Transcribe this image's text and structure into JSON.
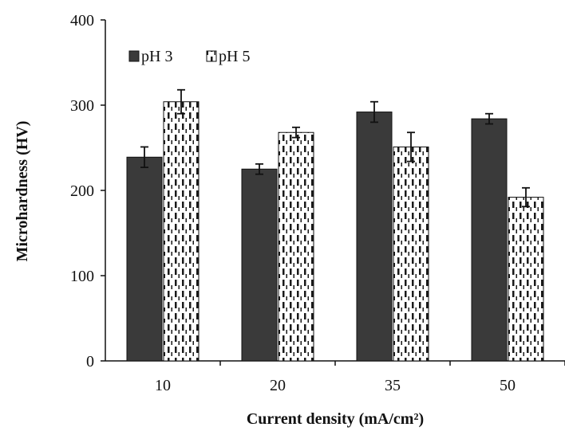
{
  "chart_data": {
    "type": "bar",
    "categories": [
      "10",
      "20",
      "35",
      "50"
    ],
    "series": [
      {
        "name": "pH 3",
        "values": [
          239,
          225,
          292,
          284
        ],
        "errors": [
          12,
          6,
          12,
          6
        ],
        "color": "#3a3a3a",
        "pattern": "solid"
      },
      {
        "name": "pH 5",
        "values": [
          304,
          268,
          251,
          192
        ],
        "errors": [
          14,
          6,
          17,
          11
        ],
        "color": "#ffffff",
        "pattern": "dashed-vertical"
      }
    ],
    "xlabel": "Current density (mA/cm²)",
    "ylabel": "Microhardness (HV)",
    "ylim": [
      0,
      400
    ],
    "yticks": [
      "0",
      "100",
      "200",
      "300",
      "400"
    ],
    "grid": false,
    "legend_position": "top-left"
  }
}
